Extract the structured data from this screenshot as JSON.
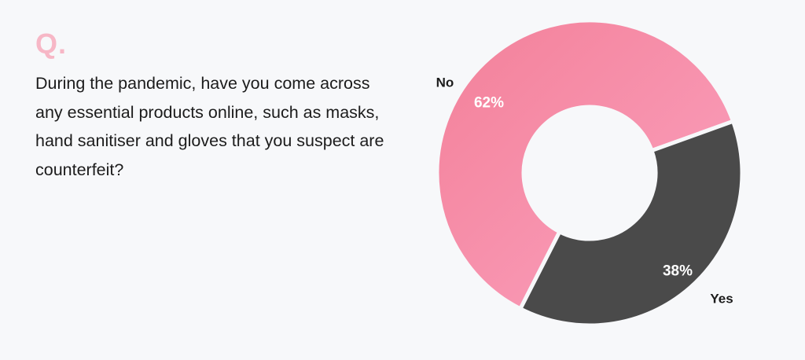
{
  "header": {
    "q_mark": "Q."
  },
  "question": {
    "text": "During the pandemic, have you come across any essential products online, such as masks, hand sanitiser and gloves that you suspect are counterfeit?"
  },
  "colors": {
    "background": "#f7f8fa",
    "accent_pink": "#f7b7c6",
    "no_slice_start": "#f38099",
    "no_slice_end": "#fba2bf",
    "yes_slice": "#4a4a4a"
  },
  "chart_data": {
    "type": "pie",
    "variant": "donut",
    "title": "",
    "categories": [
      "No",
      "Yes"
    ],
    "values": [
      62,
      38
    ],
    "data_labels": [
      "62%",
      "38%"
    ],
    "legend": "none",
    "category_label_placement": "outside"
  }
}
